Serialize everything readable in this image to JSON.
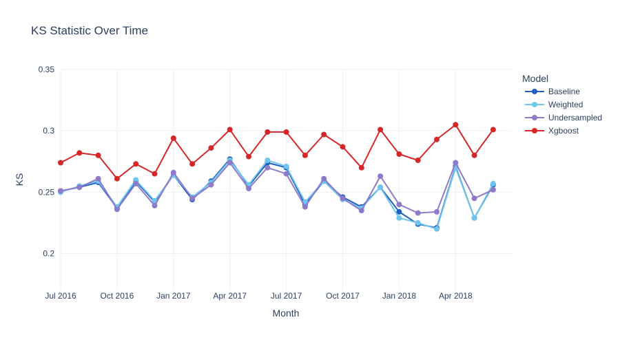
{
  "chart_data": {
    "type": "line",
    "title": "KS Statistic Over Time",
    "xlabel": "Month",
    "ylabel": "KS",
    "ylim": [
      0.17,
      0.35
    ],
    "grid": true,
    "legend_title": "Model",
    "legend_position": "top-right",
    "yticks": [
      0.2,
      0.25,
      0.3,
      0.35
    ],
    "yticklabels": [
      "0.2",
      "0.25",
      "0.3",
      "0.35"
    ],
    "xticks": [
      {
        "month": "2016-07",
        "label": "Jul 2016"
      },
      {
        "month": "2016-10",
        "label": "Oct 2016"
      },
      {
        "month": "2017-01",
        "label": "Jan 2017"
      },
      {
        "month": "2017-04",
        "label": "Apr 2017"
      },
      {
        "month": "2017-07",
        "label": "Jul 2017"
      },
      {
        "month": "2017-10",
        "label": "Oct 2017"
      },
      {
        "month": "2018-01",
        "label": "Jan 2018"
      },
      {
        "month": "2018-04",
        "label": "Apr 2018"
      }
    ],
    "x": [
      "2016-07",
      "2016-08",
      "2016-09",
      "2016-10",
      "2016-11",
      "2016-12",
      "2017-01",
      "2017-02",
      "2017-03",
      "2017-04",
      "2017-05",
      "2017-06",
      "2017-07",
      "2017-08",
      "2017-09",
      "2017-10",
      "2017-11",
      "2017-12",
      "2018-01",
      "2018-02",
      "2018-03",
      "2018-04",
      "2018-05",
      "2018-06"
    ],
    "series": [
      {
        "name": "Baseline",
        "color": "#1f5fbf",
        "values": [
          0.251,
          0.254,
          0.258,
          0.237,
          0.259,
          0.242,
          0.264,
          0.244,
          0.259,
          0.277,
          0.255,
          0.274,
          0.27,
          0.24,
          0.259,
          0.246,
          0.238,
          0.254,
          0.234,
          0.224,
          0.221,
          0.271,
          0.229,
          0.256
        ]
      },
      {
        "name": "Weighted",
        "color": "#6ec6ee",
        "values": [
          0.25,
          0.255,
          0.259,
          0.238,
          0.26,
          0.243,
          0.264,
          0.246,
          0.258,
          0.276,
          0.256,
          0.276,
          0.271,
          0.242,
          0.259,
          0.244,
          0.237,
          0.254,
          0.229,
          0.225,
          0.22,
          0.27,
          0.229,
          0.257
        ]
      },
      {
        "name": "Undersampled",
        "color": "#8f7ac9",
        "values": [
          0.251,
          0.254,
          0.261,
          0.236,
          0.257,
          0.239,
          0.266,
          0.245,
          0.256,
          0.274,
          0.253,
          0.27,
          0.265,
          0.238,
          0.261,
          0.245,
          0.235,
          0.263,
          0.24,
          0.233,
          0.234,
          0.274,
          0.245,
          0.252
        ]
      },
      {
        "name": "Xgboost",
        "color": "#d62728",
        "values": [
          0.274,
          0.282,
          0.28,
          0.261,
          0.273,
          0.265,
          0.294,
          0.273,
          0.286,
          0.301,
          0.279,
          0.299,
          0.299,
          0.28,
          0.297,
          0.287,
          0.27,
          0.301,
          0.281,
          0.276,
          0.293,
          0.305,
          0.28,
          0.301
        ]
      }
    ]
  }
}
